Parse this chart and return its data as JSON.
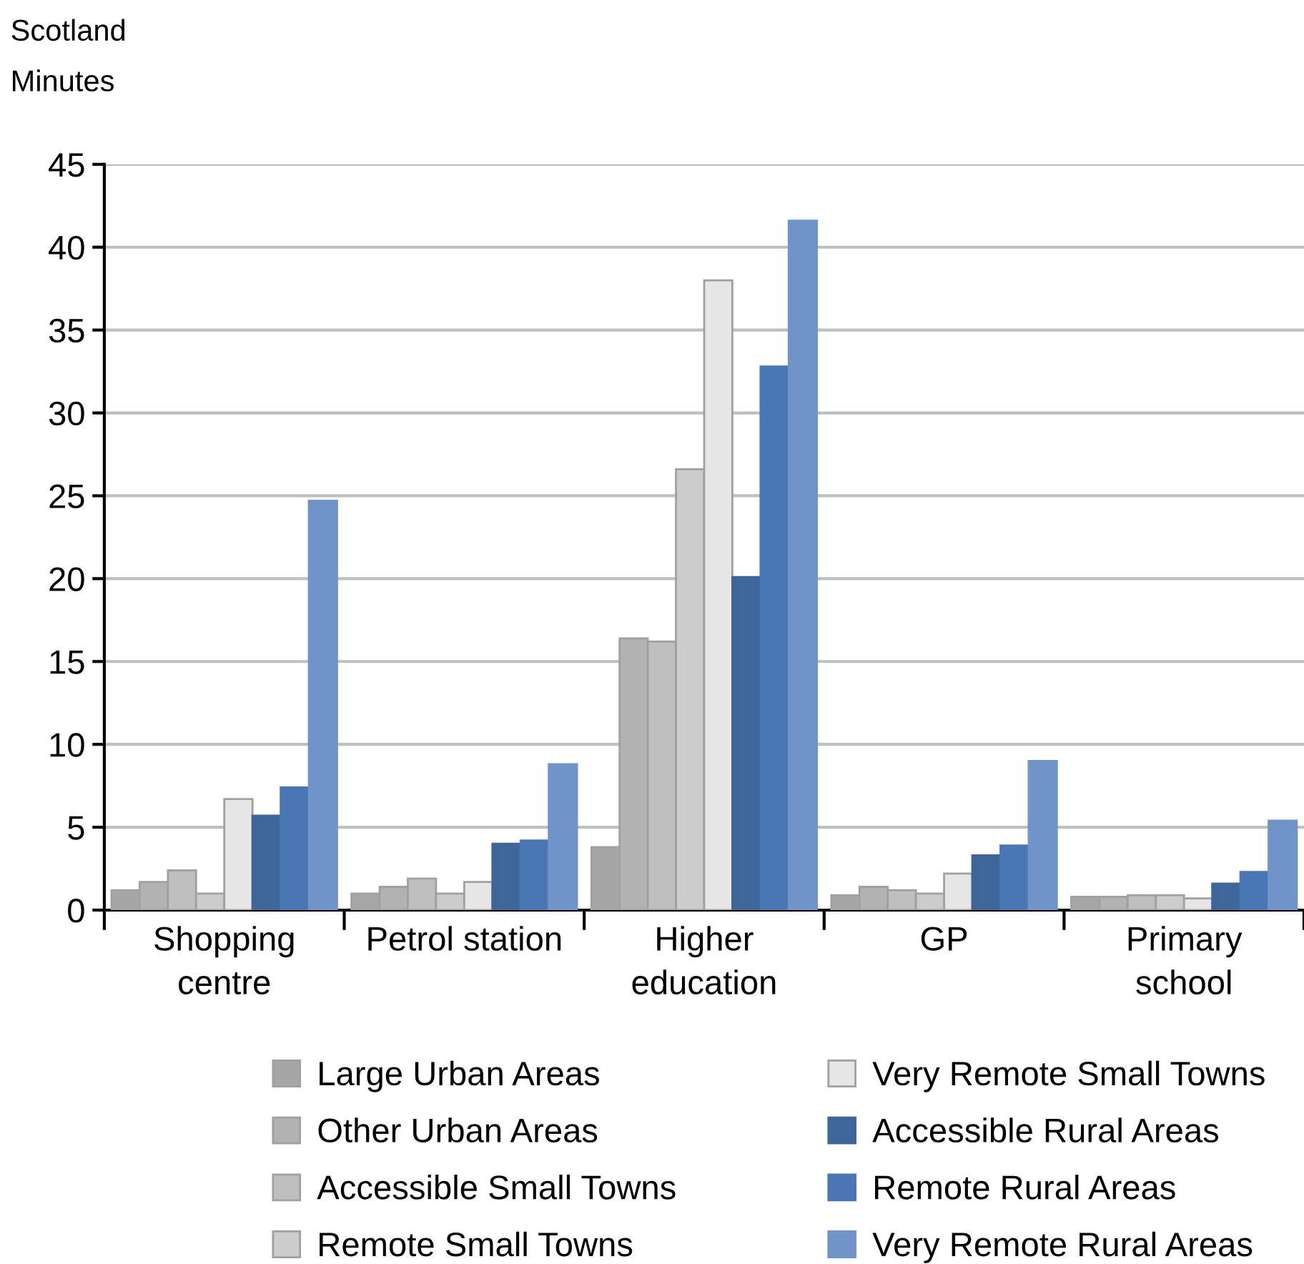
{
  "chart_data": {
    "type": "bar",
    "title": "Scotland",
    "ylabel": "Minutes",
    "categories": [
      "Shopping\ncentre",
      "Petrol station",
      "Higher\neducation",
      "GP",
      "Primary\nschool"
    ],
    "series": [
      {
        "name": "Large Urban Areas",
        "color": "#a6a6a6",
        "values": [
          1.2,
          1.0,
          3.8,
          0.9,
          0.8
        ]
      },
      {
        "name": "Other Urban Areas",
        "color": "#b2b2b2",
        "values": [
          1.7,
          1.4,
          16.4,
          1.4,
          0.8
        ]
      },
      {
        "name": "Accessible Small Towns",
        "color": "#bfbfbf",
        "values": [
          2.4,
          1.9,
          16.2,
          1.2,
          0.9
        ]
      },
      {
        "name": "Remote Small Towns",
        "color": "#cccccc",
        "values": [
          1.0,
          1.0,
          26.6,
          1.0,
          0.9
        ]
      },
      {
        "name": "Very Remote Small Towns",
        "color": "#e6e6e6",
        "values": [
          6.7,
          1.7,
          38.0,
          2.2,
          0.7
        ]
      },
      {
        "name": "Accessible Rural Areas",
        "color": "#3e6698",
        "values": [
          5.7,
          4.0,
          20.1,
          3.3,
          1.6
        ]
      },
      {
        "name": "Remote Rural Areas",
        "color": "#4a77b4",
        "values": [
          7.4,
          4.2,
          32.8,
          3.9,
          2.3
        ]
      },
      {
        "name": "Very Remote Rural Areas",
        "color": "#7094c8",
        "values": [
          24.7,
          8.8,
          41.6,
          9.0,
          5.4
        ]
      }
    ],
    "ylim": [
      0,
      45
    ],
    "yticks": [
      0,
      5,
      10,
      15,
      20,
      25,
      30,
      35,
      40,
      45
    ],
    "grid": "y",
    "legend": "bottom"
  }
}
